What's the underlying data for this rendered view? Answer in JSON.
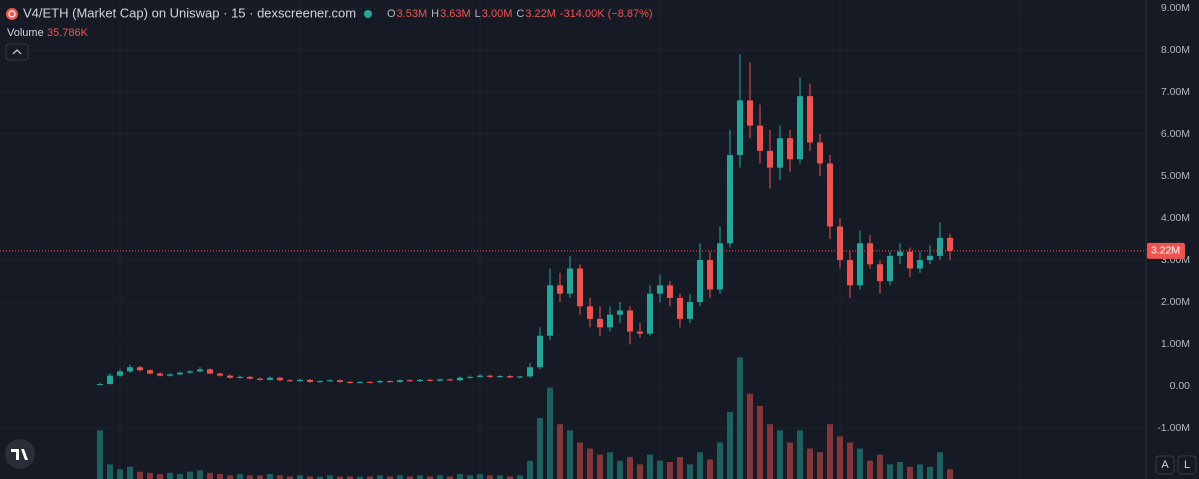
{
  "chart_data": {
    "type": "candlestick",
    "header": {
      "title": "V4/ETH (Market Cap) on Uniswap · 15 · dexscreener.com",
      "ohlc": [
        {
          "key": "O",
          "value": "3.53M"
        },
        {
          "key": "H",
          "value": "3.63M"
        },
        {
          "key": "L",
          "value": "3.00M"
        },
        {
          "key": "C",
          "value": "3.22M"
        }
      ],
      "change": "-314.00K (−8.87%)"
    },
    "volume_legend": {
      "label": "Volume",
      "value": "35.786K"
    },
    "last_price": {
      "value": 3.22,
      "label": "3.22M"
    },
    "ylim": [
      -2.21,
      9.19
    ],
    "yticks": [
      {
        "value": -1,
        "label": "-1.00M"
      },
      {
        "value": 0,
        "label": "0.00"
      },
      {
        "value": 1,
        "label": "1.00M"
      },
      {
        "value": 2,
        "label": "2.00M"
      },
      {
        "value": 3,
        "label": "3.00M"
      },
      {
        "value": 4,
        "label": "4.00M"
      },
      {
        "value": 5,
        "label": "5.00M"
      },
      {
        "value": 6,
        "label": "6.00M"
      },
      {
        "value": 7,
        "label": "7.00M"
      },
      {
        "value": 8,
        "label": "8.00M"
      },
      {
        "value": 9,
        "label": "9.00M"
      }
    ],
    "grid": true,
    "up_color": "#26a69a",
    "down_color": "#ef5350",
    "open": [
      0.03,
      0.05,
      0.25,
      0.35,
      0.45,
      0.38,
      0.3,
      0.25,
      0.28,
      0.32,
      0.35,
      0.4,
      0.3,
      0.25,
      0.2,
      0.22,
      0.18,
      0.15,
      0.2,
      0.14,
      0.12,
      0.15,
      0.1,
      0.12,
      0.14,
      0.1,
      0.08,
      0.1,
      0.09,
      0.12,
      0.1,
      0.14,
      0.12,
      0.15,
      0.13,
      0.16,
      0.14,
      0.2,
      0.22,
      0.25,
      0.22,
      0.24,
      0.21,
      0.23,
      0.45,
      1.2,
      2.4,
      2.2,
      2.8,
      1.9,
      1.6,
      1.4,
      1.7,
      1.8,
      1.3,
      1.25,
      2.2,
      2.4,
      2.1,
      1.6,
      2.0,
      3.0,
      2.3,
      3.4,
      5.5,
      6.8,
      6.2,
      5.6,
      5.2,
      5.9,
      5.4,
      6.9,
      5.8,
      5.3,
      3.8,
      3.0,
      2.4,
      3.4,
      2.9,
      2.5,
      3.1,
      3.2,
      2.8,
      3.0,
      3.1,
      3.53
    ],
    "high": [
      0.08,
      0.3,
      0.4,
      0.51,
      0.48,
      0.4,
      0.33,
      0.31,
      0.35,
      0.38,
      0.45,
      0.42,
      0.32,
      0.28,
      0.25,
      0.24,
      0.2,
      0.23,
      0.22,
      0.16,
      0.18,
      0.17,
      0.14,
      0.16,
      0.16,
      0.12,
      0.12,
      0.12,
      0.14,
      0.14,
      0.16,
      0.16,
      0.17,
      0.17,
      0.18,
      0.18,
      0.23,
      0.25,
      0.29,
      0.27,
      0.26,
      0.26,
      0.25,
      0.55,
      1.4,
      2.8,
      2.7,
      3.1,
      2.9,
      2.1,
      1.9,
      1.9,
      2.0,
      1.9,
      1.5,
      2.4,
      2.65,
      2.5,
      2.2,
      2.2,
      3.4,
      3.2,
      3.8,
      6.1,
      7.9,
      7.7,
      6.7,
      6.1,
      6.2,
      6.1,
      7.35,
      7.2,
      6.0,
      5.5,
      4.0,
      3.2,
      3.7,
      3.6,
      3.0,
      3.2,
      3.4,
      3.3,
      3.2,
      3.35,
      3.9,
      3.63
    ],
    "low": [
      0.02,
      0.04,
      0.22,
      0.32,
      0.35,
      0.28,
      0.23,
      0.23,
      0.26,
      0.3,
      0.33,
      0.28,
      0.23,
      0.18,
      0.18,
      0.16,
      0.13,
      0.13,
      0.12,
      0.1,
      0.1,
      0.08,
      0.08,
      0.1,
      0.08,
      0.06,
      0.06,
      0.07,
      0.07,
      0.08,
      0.08,
      0.1,
      0.1,
      0.11,
      0.11,
      0.12,
      0.12,
      0.18,
      0.2,
      0.2,
      0.2,
      0.19,
      0.19,
      0.2,
      0.4,
      1.1,
      2.0,
      2.1,
      1.7,
      1.4,
      1.2,
      1.3,
      1.5,
      1.0,
      1.15,
      1.2,
      2.0,
      1.9,
      1.4,
      1.5,
      1.9,
      2.1,
      2.2,
      3.3,
      5.2,
      5.9,
      5.3,
      4.7,
      4.9,
      5.1,
      5.3,
      5.6,
      5.0,
      3.5,
      2.8,
      2.1,
      2.3,
      2.8,
      2.2,
      2.4,
      2.9,
      2.6,
      2.7,
      2.9,
      3.0,
      3.0
    ],
    "close": [
      0.05,
      0.25,
      0.35,
      0.45,
      0.38,
      0.3,
      0.25,
      0.28,
      0.32,
      0.35,
      0.4,
      0.3,
      0.25,
      0.2,
      0.22,
      0.18,
      0.15,
      0.2,
      0.14,
      0.12,
      0.15,
      0.1,
      0.12,
      0.14,
      0.1,
      0.08,
      0.1,
      0.09,
      0.12,
      0.1,
      0.14,
      0.12,
      0.15,
      0.13,
      0.16,
      0.14,
      0.2,
      0.22,
      0.25,
      0.22,
      0.24,
      0.21,
      0.23,
      0.45,
      1.2,
      2.4,
      2.2,
      2.8,
      1.9,
      1.6,
      1.4,
      1.7,
      1.8,
      1.3,
      1.25,
      2.2,
      2.4,
      2.1,
      1.6,
      2.0,
      3.0,
      2.3,
      3.4,
      5.5,
      6.8,
      6.2,
      5.6,
      5.2,
      5.9,
      5.4,
      6.9,
      5.8,
      5.3,
      3.8,
      3.0,
      2.4,
      3.4,
      2.9,
      2.5,
      3.1,
      3.2,
      2.8,
      3.0,
      3.1,
      3.53,
      3.22
    ],
    "volume": [
      40,
      12,
      8,
      10,
      6,
      5,
      4,
      5,
      4,
      6,
      7,
      5,
      4,
      3,
      4,
      3,
      3,
      4,
      3,
      2,
      3,
      2,
      2,
      3,
      2,
      2,
      2,
      2,
      3,
      2,
      3,
      2,
      3,
      2,
      3,
      2,
      4,
      3,
      4,
      3,
      3,
      2,
      3,
      15,
      50,
      75,
      45,
      40,
      30,
      25,
      20,
      22,
      15,
      18,
      12,
      20,
      15,
      14,
      18,
      12,
      22,
      16,
      30,
      55,
      100,
      70,
      60,
      45,
      40,
      30,
      40,
      25,
      22,
      45,
      35,
      30,
      25,
      15,
      20,
      12,
      14,
      10,
      12,
      10,
      22,
      8
    ],
    "volume_lim": [
      0,
      115
    ],
    "buttons": [
      "A",
      "L"
    ]
  }
}
